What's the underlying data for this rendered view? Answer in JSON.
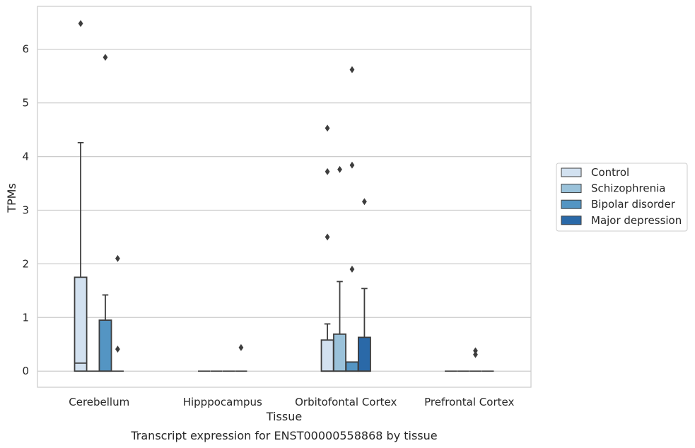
{
  "chart_data": {
    "type": "box",
    "title": "",
    "caption": "Transcript expression for ENST00000558868 by tissue",
    "xlabel": "Tissue",
    "ylabel": "TPMs",
    "ylim": [
      -0.3,
      6.8
    ],
    "yticks": [
      0,
      1,
      2,
      3,
      4,
      5,
      6
    ],
    "ytick_labels": [
      "0",
      "1",
      "2",
      "3",
      "4",
      "5",
      "6"
    ],
    "grid": "horizontal",
    "legend_position": "right",
    "categories": [
      "Cerebellum",
      "Hipppocampus",
      "Orbitofontal Cortex",
      "Prefrontal Cortex"
    ],
    "series": [
      {
        "name": "Control",
        "color": "#d2e1f0",
        "boxes": [
          {
            "q1": 0,
            "median": 0.15,
            "q3": 1.75,
            "whislo": 0,
            "whishi": 4.26,
            "fliers": [
              6.48
            ]
          },
          {
            "q1": 0,
            "median": 0,
            "q3": 0,
            "whislo": 0,
            "whishi": 0,
            "fliers": []
          },
          {
            "q1": 0,
            "median": 0,
            "q3": 0.58,
            "whislo": 0,
            "whishi": 0.88,
            "fliers": [
              2.5,
              3.72,
              4.53
            ]
          },
          {
            "q1": 0,
            "median": 0,
            "q3": 0,
            "whislo": 0,
            "whishi": 0,
            "fliers": []
          }
        ]
      },
      {
        "name": "Schizophrenia",
        "color": "#9ac2da",
        "boxes": [
          {
            "q1": 0,
            "median": 0,
            "q3": 0,
            "whislo": 0,
            "whishi": 0,
            "fliers": []
          },
          {
            "q1": 0,
            "median": 0,
            "q3": 0,
            "whislo": 0,
            "whishi": 0,
            "fliers": []
          },
          {
            "q1": 0,
            "median": 0,
            "q3": 0.69,
            "whislo": 0,
            "whishi": 1.67,
            "fliers": [
              3.76
            ]
          },
          {
            "q1": 0,
            "median": 0,
            "q3": 0,
            "whislo": 0,
            "whishi": 0,
            "fliers": []
          }
        ]
      },
      {
        "name": "Bipolar disorder",
        "color": "#5495c3",
        "boxes": [
          {
            "q1": 0,
            "median": 0,
            "q3": 0.95,
            "whislo": 0,
            "whishi": 1.42,
            "fliers": [
              5.85
            ]
          },
          {
            "q1": 0,
            "median": 0,
            "q3": 0,
            "whislo": 0,
            "whishi": 0,
            "fliers": []
          },
          {
            "q1": 0,
            "median": 0,
            "q3": 0.17,
            "whislo": 0,
            "whishi": 0.17,
            "fliers": [
              1.9,
              3.84,
              5.62
            ]
          },
          {
            "q1": 0,
            "median": 0,
            "q3": 0,
            "whislo": 0,
            "whishi": 0,
            "fliers": [
              0.31,
              0.38
            ]
          }
        ]
      },
      {
        "name": "Major depression",
        "color": "#2a69a8",
        "boxes": [
          {
            "q1": 0,
            "median": 0,
            "q3": 0,
            "whislo": 0,
            "whishi": 0,
            "fliers": [
              0.41,
              2.1
            ]
          },
          {
            "q1": 0,
            "median": 0,
            "q3": 0,
            "whislo": 0,
            "whishi": 0,
            "fliers": [
              0.44
            ]
          },
          {
            "q1": 0,
            "median": 0,
            "q3": 0.63,
            "whislo": 0,
            "whishi": 1.54,
            "fliers": [
              3.16
            ]
          },
          {
            "q1": 0,
            "median": 0,
            "q3": 0,
            "whislo": 0,
            "whishi": 0,
            "fliers": []
          }
        ]
      }
    ]
  }
}
